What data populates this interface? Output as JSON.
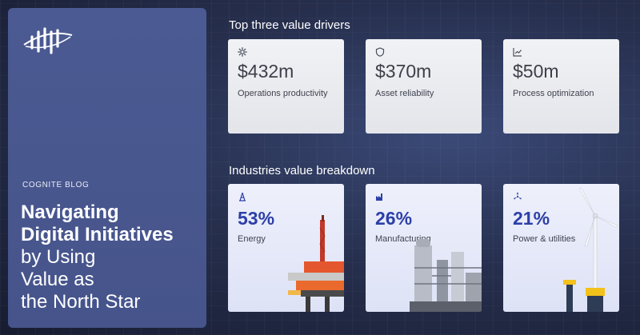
{
  "brand": {
    "logo_icon": "cognite-logo-icon"
  },
  "blog_label": "COGNITE BLOG",
  "headline": {
    "line1": "Navigating",
    "line2": "Digital Initiatives",
    "line3": "by Using",
    "line4": "Value as",
    "line5": "the North Star"
  },
  "value_drivers": {
    "title": "Top three value drivers",
    "cards": [
      {
        "icon": "gear-icon",
        "value": "$432m",
        "label": "Operations productivity"
      },
      {
        "icon": "shield-icon",
        "value": "$370m",
        "label": "Asset reliability"
      },
      {
        "icon": "line-chart-icon",
        "value": "$50m",
        "label": "Process optimization"
      }
    ]
  },
  "industries": {
    "title": "Industries value breakdown",
    "cards": [
      {
        "icon": "oil-rig-icon",
        "value": "53%",
        "label": "Energy"
      },
      {
        "icon": "factory-icon",
        "value": "26%",
        "label": "Manufacturing"
      },
      {
        "icon": "wind-turbine-icon",
        "value": "21%",
        "label": "Power & utilities"
      }
    ]
  },
  "colors": {
    "panel": "#4b5a92",
    "accent_value": "#2c3fa8",
    "background": "#27304f"
  }
}
